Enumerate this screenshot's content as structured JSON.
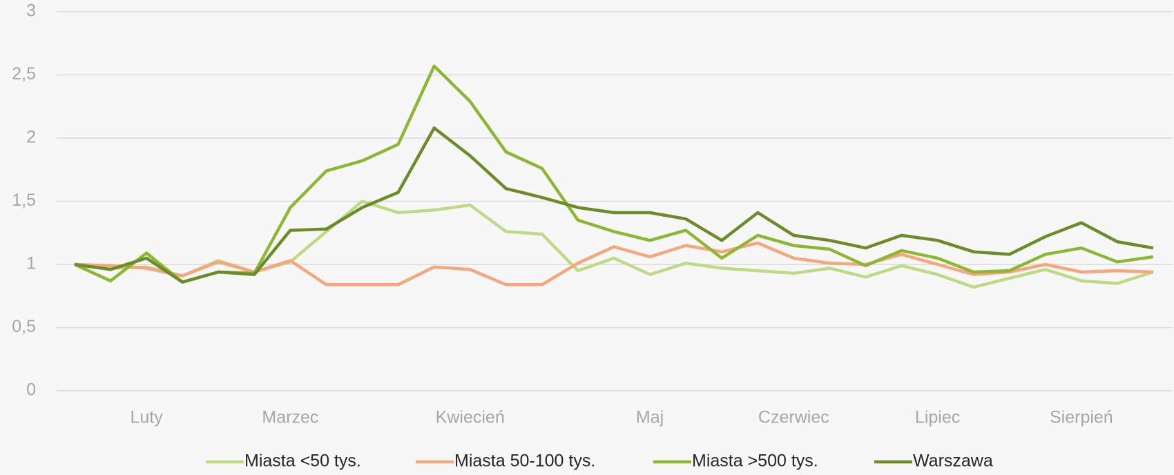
{
  "chart_data": {
    "type": "line",
    "categories": [
      null,
      null,
      "Luty",
      null,
      null,
      null,
      "Marzec",
      null,
      null,
      null,
      null,
      "Kwiecień",
      null,
      null,
      null,
      null,
      "Maj",
      null,
      null,
      null,
      "Czerwiec",
      null,
      null,
      null,
      "Lipiec",
      null,
      null,
      null,
      "Sierpień",
      null,
      null
    ],
    "series": [
      {
        "name": "Miasta <50 tys.",
        "color": "#bcdb84",
        "values": [
          1.0,
          0.97,
          0.98,
          0.91,
          1.03,
          0.94,
          1.02,
          1.26,
          1.5,
          1.41,
          1.43,
          1.47,
          1.26,
          1.24,
          0.95,
          1.05,
          0.92,
          1.01,
          0.97,
          0.95,
          0.93,
          0.97,
          0.9,
          0.99,
          0.92,
          0.82,
          0.89,
          0.96,
          0.87,
          0.85,
          0.94
        ]
      },
      {
        "name": "Miasta 50-100 tys.",
        "color": "#f6a67c",
        "values": [
          1.0,
          0.99,
          0.97,
          0.91,
          1.02,
          0.94,
          1.03,
          0.84,
          0.84,
          0.84,
          0.98,
          0.96,
          0.84,
          0.84,
          1.01,
          1.14,
          1.06,
          1.15,
          1.1,
          1.17,
          1.05,
          1.01,
          1.0,
          1.08,
          1.0,
          0.92,
          0.94,
          1.0,
          0.94,
          0.95,
          0.94
        ]
      },
      {
        "name": "Miasta >500 tys.",
        "color": "#8cb733",
        "values": [
          1.0,
          0.87,
          1.09,
          0.86,
          0.94,
          0.93,
          1.45,
          1.74,
          1.82,
          1.95,
          2.57,
          2.29,
          1.89,
          1.76,
          1.35,
          1.26,
          1.19,
          1.27,
          1.05,
          1.23,
          1.15,
          1.12,
          0.99,
          1.11,
          1.05,
          0.94,
          0.95,
          1.08,
          1.13,
          1.02,
          1.06
        ]
      },
      {
        "name": "Warszawa",
        "color": "#6b8c28",
        "values": [
          1.0,
          0.96,
          1.05,
          0.86,
          0.94,
          0.92,
          1.27,
          1.28,
          1.45,
          1.57,
          2.08,
          1.86,
          1.6,
          1.53,
          1.45,
          1.41,
          1.41,
          1.36,
          1.19,
          1.41,
          1.23,
          1.19,
          1.13,
          1.23,
          1.19,
          1.1,
          1.08,
          1.22,
          1.33,
          1.18,
          1.13
        ]
      }
    ],
    "ylim": [
      0,
      3
    ],
    "yticks": [
      0,
      {
        "value": 0.5,
        "label": "0,5"
      },
      1,
      {
        "value": 1.5,
        "label": "1,5"
      },
      2,
      {
        "value": 2.5,
        "label": "2,5"
      },
      3
    ],
    "grid": true,
    "legend": "bottom"
  }
}
